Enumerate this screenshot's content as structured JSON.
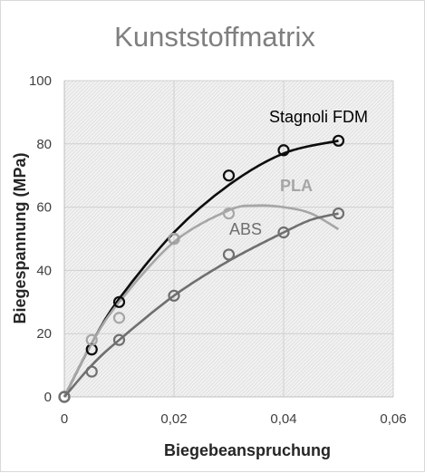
{
  "chart_data": {
    "type": "scatter",
    "title": "Kunststoffmatrix",
    "xlabel": "Biegebeanspruchung",
    "ylabel": "Biegespannung (MPa)",
    "xlim": [
      0,
      0.06
    ],
    "ylim": [
      0,
      100
    ],
    "x_ticks": [
      "0",
      "0,02",
      "0,04",
      "0,06"
    ],
    "y_ticks": [
      "0",
      "20",
      "40",
      "60",
      "80",
      "100"
    ],
    "grid": true,
    "background": "hatched",
    "series": [
      {
        "name": "Stagnoli FDM",
        "color": "#0d0d0d",
        "label_bold": false,
        "points": [
          [
            0,
            0
          ],
          [
            0.005,
            15
          ],
          [
            0.01,
            30
          ],
          [
            0.02,
            50
          ],
          [
            0.03,
            70
          ],
          [
            0.04,
            78
          ],
          [
            0.05,
            81
          ]
        ],
        "trend": [
          [
            0,
            0
          ],
          [
            0.005,
            17
          ],
          [
            0.01,
            31
          ],
          [
            0.02,
            52
          ],
          [
            0.03,
            67
          ],
          [
            0.04,
            77
          ],
          [
            0.05,
            81
          ]
        ]
      },
      {
        "name": "PLA",
        "color": "#a6a6a6",
        "label_bold": true,
        "points": [
          [
            0,
            0
          ],
          [
            0.005,
            18
          ],
          [
            0.01,
            25
          ],
          [
            0.02,
            50
          ],
          [
            0.03,
            58
          ]
        ],
        "trend": [
          [
            0,
            0
          ],
          [
            0.005,
            17
          ],
          [
            0.01,
            30
          ],
          [
            0.02,
            49
          ],
          [
            0.03,
            59
          ],
          [
            0.035,
            60.5
          ],
          [
            0.04,
            60
          ],
          [
            0.045,
            58
          ],
          [
            0.05,
            53
          ]
        ]
      },
      {
        "name": "ABS",
        "color": "#6f6f6f",
        "label_bold": false,
        "points": [
          [
            0,
            0
          ],
          [
            0.005,
            8
          ],
          [
            0.01,
            18
          ],
          [
            0.02,
            32
          ],
          [
            0.03,
            45
          ],
          [
            0.04,
            52
          ],
          [
            0.05,
            58
          ]
        ],
        "trend": [
          [
            0,
            0
          ],
          [
            0.005,
            10
          ],
          [
            0.01,
            18
          ],
          [
            0.02,
            32
          ],
          [
            0.03,
            43
          ],
          [
            0.04,
            52
          ],
          [
            0.045,
            56
          ],
          [
            0.05,
            58
          ]
        ]
      }
    ]
  }
}
